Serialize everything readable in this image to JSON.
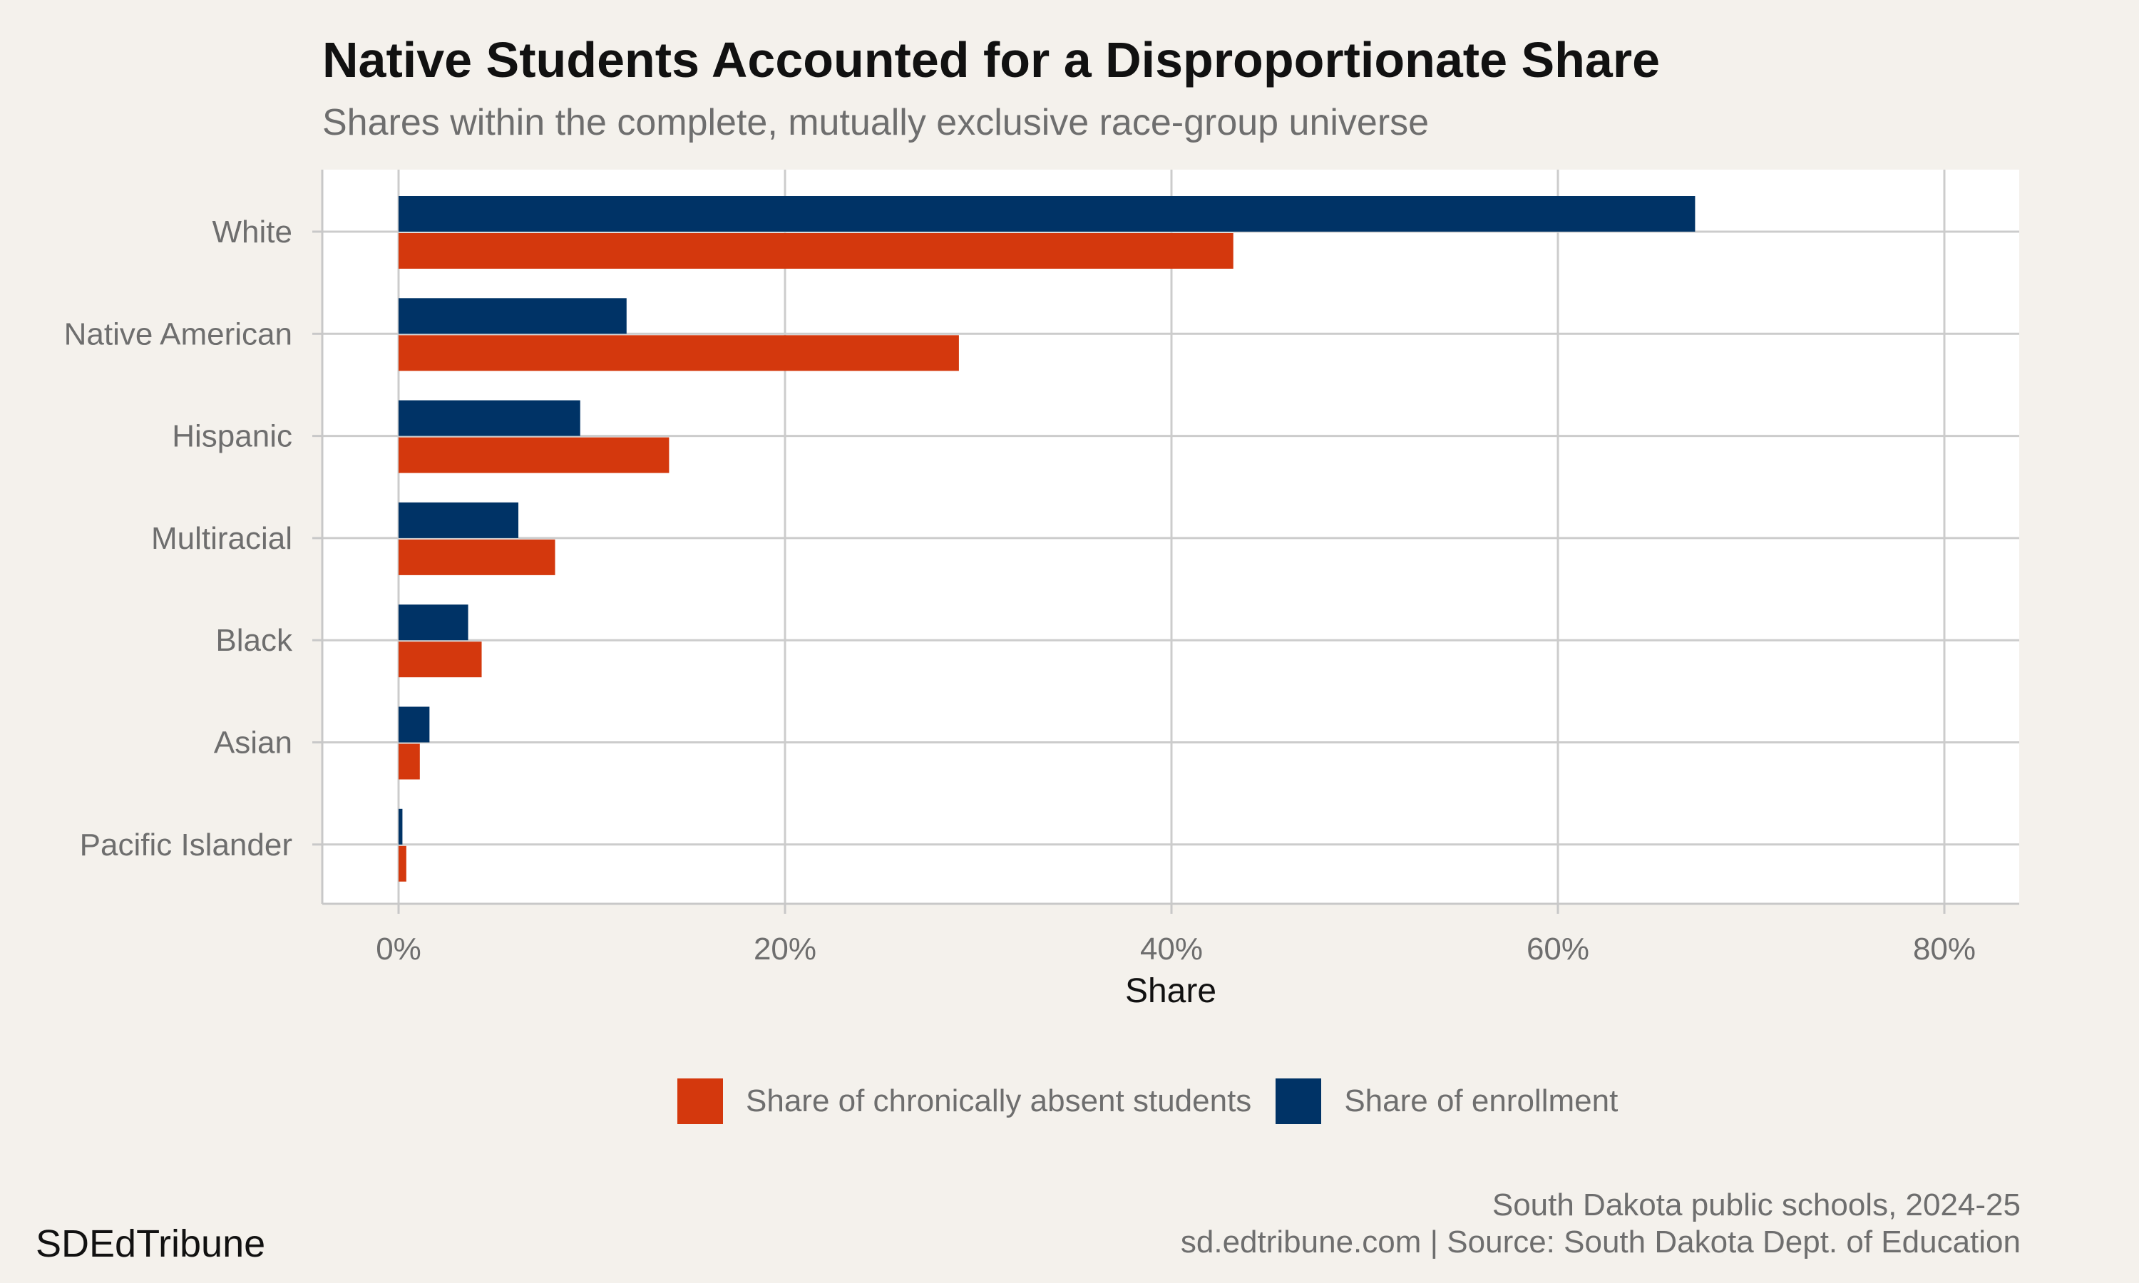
{
  "header": {
    "title": "Native Students Accounted for a Disproportionate Share",
    "subtitle": "Shares within the complete, mutually exclusive race-group universe"
  },
  "chart_data": {
    "type": "bar",
    "orientation": "horizontal",
    "categories": [
      "White",
      "Native American",
      "Hispanic",
      "Multiracial",
      "Black",
      "Asian",
      "Pacific Islander"
    ],
    "series": [
      {
        "name": "Share of enrollment",
        "color": "#003366",
        "values": [
          67.1,
          11.8,
          9.4,
          6.2,
          3.6,
          1.6,
          0.2
        ]
      },
      {
        "name": "Share of chronically absent students",
        "color": "#d4380d",
        "values": [
          43.2,
          29.0,
          14.0,
          8.1,
          4.3,
          1.1,
          0.4
        ]
      }
    ],
    "legend_order": [
      "Share of chronically absent students",
      "Share of enrollment"
    ],
    "xlabel": "Share",
    "ylabel": "",
    "xlim": [
      0,
      80
    ],
    "xticks": [
      0,
      20,
      40,
      60,
      80
    ],
    "xtick_labels": [
      "0%",
      "20%",
      "40%",
      "60%",
      "80%"
    ],
    "grid": true,
    "legend_position": "bottom"
  },
  "footer": {
    "brand": "SDEdTribune",
    "line1": "South Dakota public schools, 2024-25",
    "line2": "sd.edtribune.com | Source: South Dakota Dept. of Education"
  }
}
